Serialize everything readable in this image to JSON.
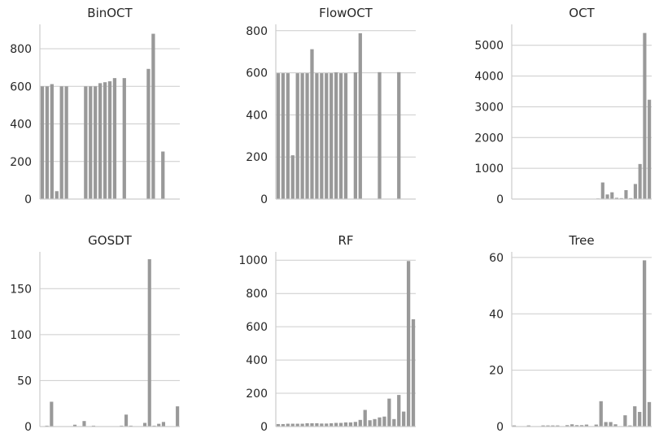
{
  "bar_color": "#999999",
  "grid_color": "#cccccc",
  "chart_data": [
    {
      "type": "bar",
      "title": "BinOCT",
      "xlabel": "",
      "ylabel": "",
      "ylim": [
        0,
        930
      ],
      "yticks": [
        0,
        200,
        400,
        600,
        800
      ],
      "grid": "horizontal",
      "values": [
        600,
        600,
        612,
        42,
        600,
        600,
        0,
        0,
        0,
        600,
        600,
        600,
        617,
        622,
        627,
        644,
        0,
        644,
        0,
        0,
        0,
        0,
        693,
        880,
        0,
        253,
        0,
        0,
        0
      ]
    },
    {
      "type": "bar",
      "title": "FlowOCT",
      "xlabel": "",
      "ylabel": "",
      "ylim": [
        0,
        830
      ],
      "yticks": [
        0,
        200,
        400,
        600,
        800
      ],
      "grid": "horizontal",
      "values": [
        598,
        598,
        598,
        208,
        598,
        598,
        598,
        712,
        598,
        598,
        598,
        598,
        602,
        598,
        598,
        0,
        602,
        788,
        0,
        0,
        0,
        603,
        0,
        0,
        0,
        603,
        0,
        0,
        0
      ]
    },
    {
      "type": "bar",
      "title": "OCT",
      "xlabel": "",
      "ylabel": "",
      "ylim": [
        0,
        5680
      ],
      "yticks": [
        0,
        1000,
        2000,
        3000,
        4000,
        5000
      ],
      "grid": "horizontal",
      "values": [
        0,
        0,
        0,
        0,
        0,
        0,
        0,
        0,
        0,
        0,
        0,
        0,
        0,
        0,
        0,
        0,
        0,
        0,
        20,
        540,
        150,
        220,
        40,
        30,
        290,
        30,
        490,
        1140,
        5400,
        3230
      ]
    },
    {
      "type": "bar",
      "title": "GOSDT",
      "xlabel": "",
      "ylabel": "",
      "ylim": [
        0,
        190
      ],
      "yticks": [
        0,
        50,
        100,
        150
      ],
      "grid": "horizontal",
      "values": [
        0,
        1,
        27,
        0,
        0,
        0,
        0,
        2,
        0,
        6,
        0,
        1,
        0,
        0,
        0,
        0,
        0,
        1,
        13,
        1,
        0,
        0,
        4,
        182,
        1,
        3,
        5,
        0,
        0,
        22
      ]
    },
    {
      "type": "bar",
      "title": "RF",
      "xlabel": "",
      "ylabel": "",
      "ylim": [
        0,
        1050
      ],
      "yticks": [
        0,
        200,
        400,
        600,
        800,
        1000
      ],
      "grid": "horizontal",
      "values": [
        15,
        15,
        17,
        17,
        17,
        17,
        20,
        20,
        20,
        18,
        18,
        20,
        22,
        22,
        25,
        25,
        28,
        40,
        100,
        38,
        45,
        55,
        60,
        168,
        45,
        190,
        90,
        995,
        645
      ]
    },
    {
      "type": "bar",
      "title": "Tree",
      "xlabel": "",
      "ylabel": "",
      "ylim": [
        0,
        62
      ],
      "yticks": [
        0,
        20,
        40,
        60
      ],
      "grid": "horizontal",
      "values": [
        0.4,
        0,
        0,
        0.4,
        0,
        0,
        0.4,
        0.4,
        0.4,
        0.4,
        0,
        0.5,
        0.8,
        0.5,
        0.5,
        0.7,
        0,
        0.7,
        9,
        1.6,
        1.6,
        0.8,
        0,
        4,
        0.4,
        7.2,
        5.2,
        59,
        8.7
      ]
    }
  ]
}
